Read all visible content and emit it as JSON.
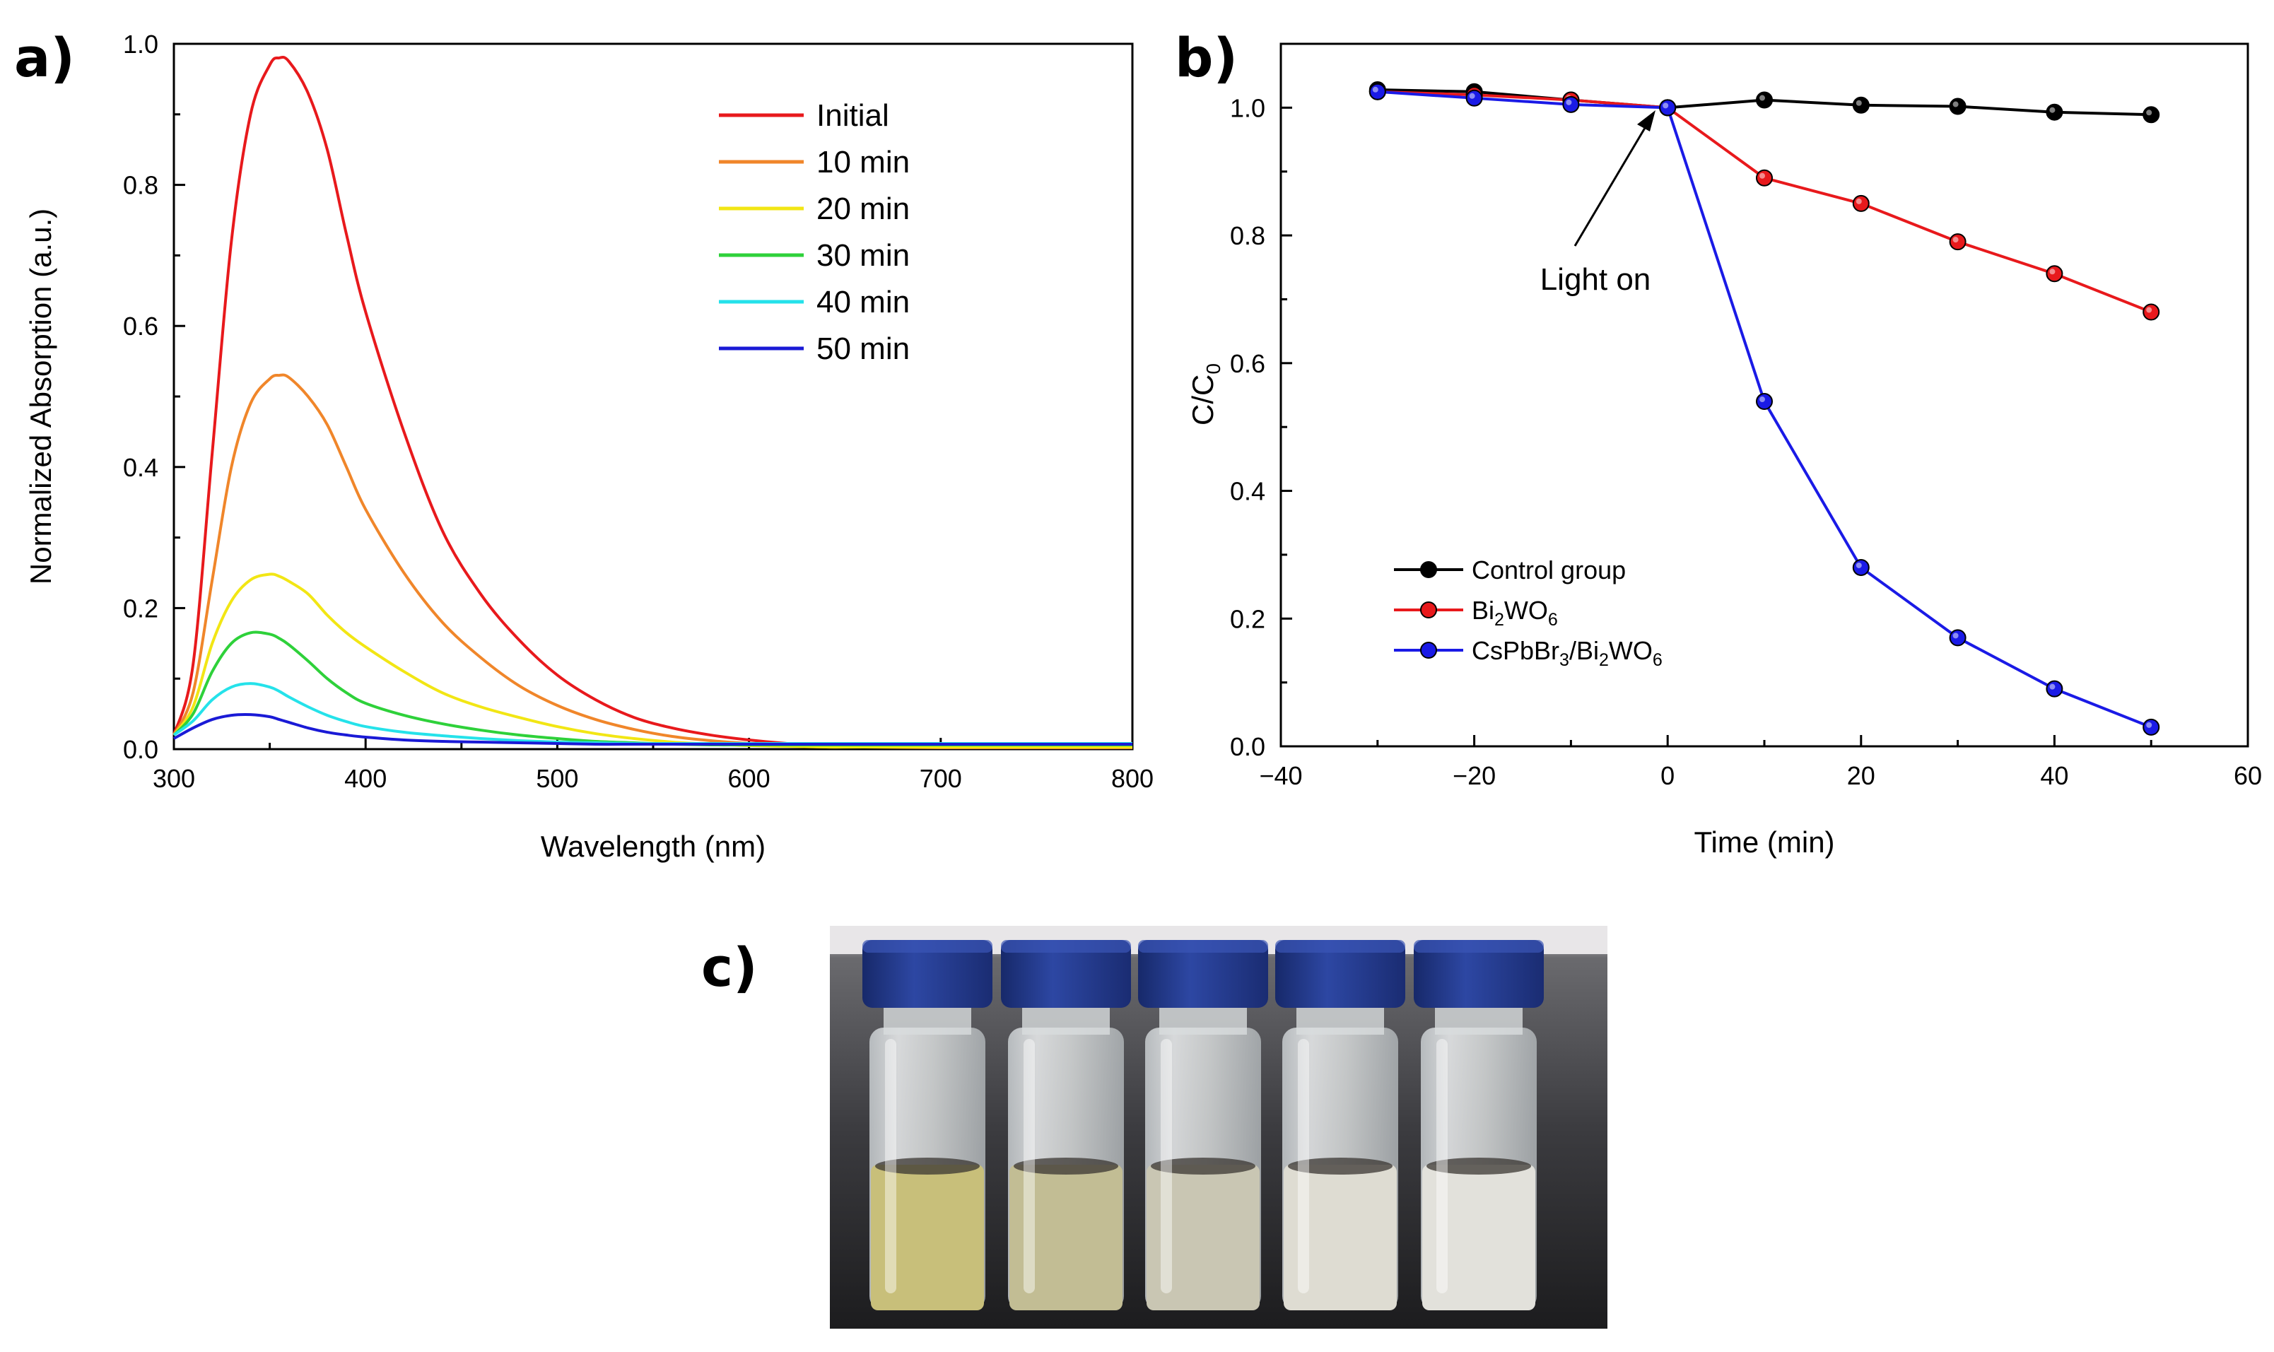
{
  "figure": {
    "panel_labels": {
      "a": "a)",
      "b": "b)",
      "c": "c)"
    }
  },
  "chart_data": [
    {
      "type": "line",
      "panel": "a",
      "title": "",
      "xlabel": "Wavelength (nm)",
      "ylabel": "Normalized Absorption (a.u.)",
      "xlim": [
        300,
        800
      ],
      "ylim": [
        0.0,
        1.0
      ],
      "xticks": [
        300,
        400,
        500,
        600,
        700,
        800
      ],
      "yticks": [
        0.0,
        0.2,
        0.4,
        0.6,
        0.8,
        1.0
      ],
      "xtick_labels": [
        "300",
        "400",
        "500",
        "600",
        "700",
        "800"
      ],
      "ytick_labels": [
        "0.0",
        "0.2",
        "0.4",
        "0.6",
        "0.8",
        "1.0"
      ],
      "legend_position": "top-right",
      "x": [
        300,
        310,
        320,
        330,
        340,
        350,
        355,
        360,
        370,
        380,
        390,
        400,
        420,
        440,
        460,
        480,
        500,
        520,
        540,
        560,
        580,
        600,
        620,
        640,
        660,
        700,
        750,
        800
      ],
      "series": [
        {
          "name": "Initial",
          "color": "#e8191c",
          "values": [
            0.02,
            0.12,
            0.42,
            0.72,
            0.9,
            0.97,
            0.98,
            0.975,
            0.93,
            0.85,
            0.73,
            0.62,
            0.45,
            0.31,
            0.22,
            0.155,
            0.105,
            0.07,
            0.045,
            0.03,
            0.02,
            0.013,
            0.008,
            0.005,
            0.004,
            0.003,
            0.002,
            0.002
          ]
        },
        {
          "name": "10 min",
          "color": "#f0862a",
          "values": [
            0.02,
            0.08,
            0.24,
            0.4,
            0.49,
            0.525,
            0.53,
            0.527,
            0.5,
            0.46,
            0.4,
            0.34,
            0.25,
            0.18,
            0.13,
            0.09,
            0.062,
            0.042,
            0.028,
            0.018,
            0.012,
            0.008,
            0.005,
            0.003,
            0.003,
            0.002,
            0.002,
            0.002
          ]
        },
        {
          "name": "20 min",
          "color": "#f2e614",
          "values": [
            0.02,
            0.06,
            0.15,
            0.21,
            0.24,
            0.248,
            0.245,
            0.238,
            0.22,
            0.19,
            0.165,
            0.145,
            0.11,
            0.08,
            0.06,
            0.045,
            0.032,
            0.022,
            0.015,
            0.01,
            0.007,
            0.005,
            0.004,
            0.003,
            0.003,
            0.003,
            0.003,
            0.003
          ]
        },
        {
          "name": "30 min",
          "color": "#2ed13a",
          "values": [
            0.02,
            0.05,
            0.11,
            0.15,
            0.165,
            0.163,
            0.157,
            0.148,
            0.125,
            0.1,
            0.08,
            0.065,
            0.048,
            0.036,
            0.027,
            0.02,
            0.015,
            0.011,
            0.009,
            0.007,
            0.006,
            0.006,
            0.006,
            0.006,
            0.006,
            0.006,
            0.006,
            0.006
          ]
        },
        {
          "name": "40 min",
          "color": "#25e2ea",
          "values": [
            0.02,
            0.04,
            0.07,
            0.088,
            0.093,
            0.088,
            0.082,
            0.074,
            0.06,
            0.048,
            0.039,
            0.032,
            0.024,
            0.019,
            0.015,
            0.012,
            0.01,
            0.009,
            0.008,
            0.008,
            0.008,
            0.008,
            0.008,
            0.008,
            0.008,
            0.008,
            0.008,
            0.008
          ]
        },
        {
          "name": "50 min",
          "color": "#1a1ad6",
          "values": [
            0.015,
            0.03,
            0.042,
            0.048,
            0.049,
            0.046,
            0.042,
            0.038,
            0.03,
            0.024,
            0.02,
            0.017,
            0.013,
            0.011,
            0.01,
            0.009,
            0.008,
            0.007,
            0.007,
            0.007,
            0.007,
            0.007,
            0.007,
            0.007,
            0.007,
            0.007,
            0.007,
            0.007
          ]
        }
      ]
    },
    {
      "type": "line",
      "panel": "b",
      "title": "",
      "xlabel": "Time (min)",
      "ylabel_main": "C/C",
      "ylabel_sub": "0",
      "xlim": [
        -40,
        60
      ],
      "ylim": [
        0.0,
        1.1
      ],
      "xticks": [
        -40,
        -20,
        0,
        20,
        40,
        60
      ],
      "yticks": [
        0.0,
        0.2,
        0.4,
        0.6,
        0.8,
        1.0
      ],
      "xtick_labels": [
        "−40",
        "−20",
        "0",
        "20",
        "40",
        "60"
      ],
      "ytick_labels": [
        "0.0",
        "0.2",
        "0.4",
        "0.6",
        "0.8",
        "1.0"
      ],
      "legend_position": "bottom-left",
      "x": [
        -30,
        -20,
        -10,
        0,
        10,
        20,
        30,
        40,
        50
      ],
      "series": [
        {
          "name": "Control group",
          "color": "#000000",
          "label_parts": [
            [
              "Control group",
              "n"
            ]
          ],
          "values": [
            1.028,
            1.025,
            1.012,
            1.0,
            1.012,
            1.004,
            1.002,
            0.993,
            0.989
          ]
        },
        {
          "name": "Bi2WO6",
          "color": "#e8191c",
          "label_parts": [
            [
              "Bi",
              "n"
            ],
            [
              "2",
              "s"
            ],
            [
              "WO",
              "n"
            ],
            [
              "6",
              "s"
            ]
          ],
          "values": [
            1.025,
            1.02,
            1.012,
            1.0,
            0.89,
            0.85,
            0.79,
            0.74,
            0.68
          ]
        },
        {
          "name": "CsPbBr3/Bi2WO6",
          "color": "#1a1ae6",
          "label_parts": [
            [
              "CsPbBr",
              "n"
            ],
            [
              "3",
              "s"
            ],
            [
              "/Bi",
              "n"
            ],
            [
              "2",
              "s"
            ],
            [
              "WO",
              "n"
            ],
            [
              "6",
              "s"
            ]
          ],
          "values": [
            1.025,
            1.015,
            1.005,
            1.0,
            0.54,
            0.28,
            0.17,
            0.09,
            0.03
          ]
        }
      ],
      "annotations": [
        {
          "text": "Light on",
          "x": 0,
          "y": 1.0
        }
      ]
    }
  ],
  "photo": {
    "description_icon": "vials-photo",
    "vial_count": 5,
    "liquid_colors": [
      "#c8bf7a",
      "#c2bd94",
      "#c9c6b3",
      "#dedcd2",
      "#e2e1db"
    ],
    "cap_color": "#213a86"
  }
}
